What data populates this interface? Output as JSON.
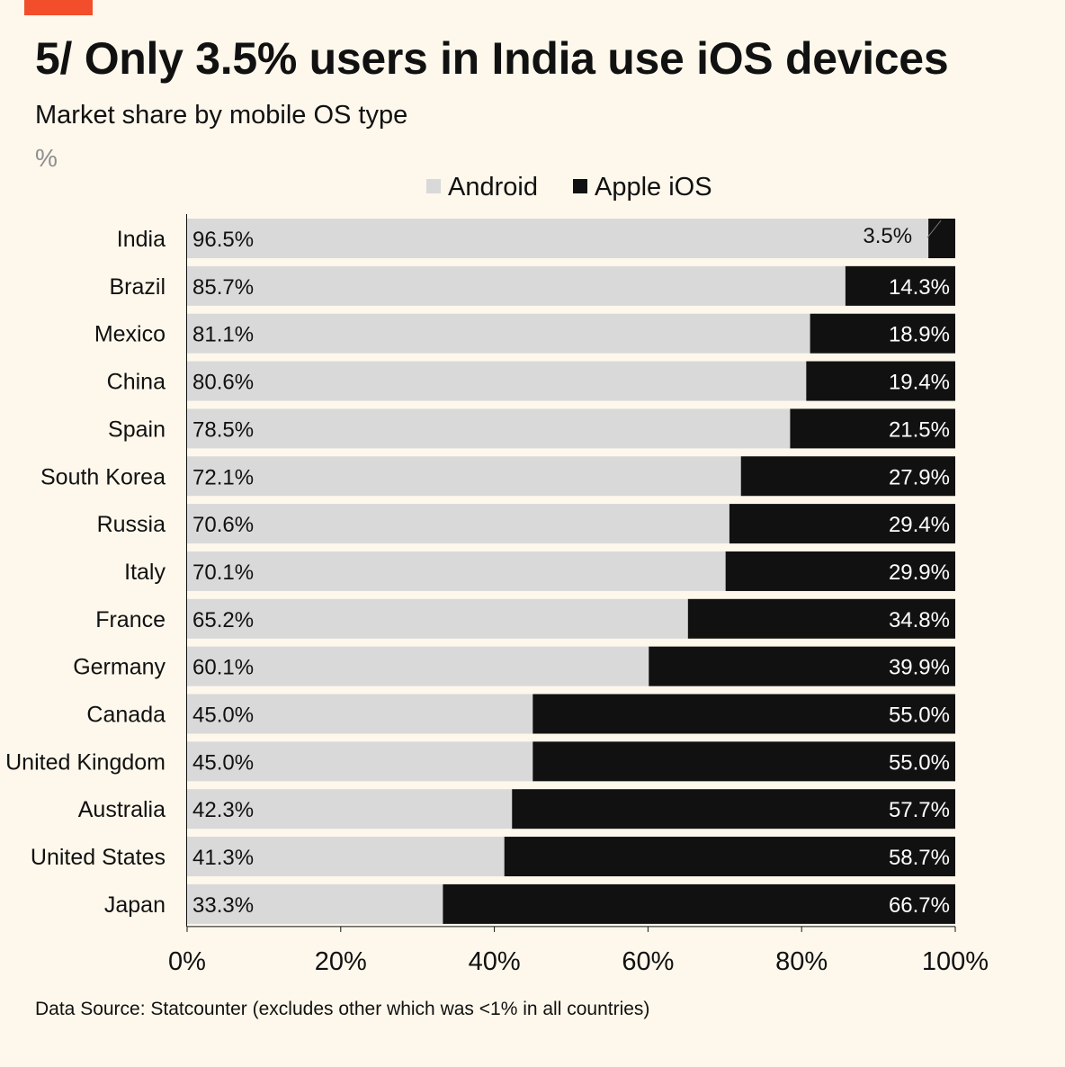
{
  "header": {
    "title": "5/ Only 3.5% users in India use iOS devices",
    "subtitle": "Market share by mobile OS type",
    "unit": "%"
  },
  "footer": {
    "source": "Data Source: Statcounter (excludes other which was <1% in all countries)"
  },
  "colors": {
    "accent": "#f24e2b",
    "android": "#d9d9d9",
    "ios": "#111111",
    "background": "#fef8ec"
  },
  "chart_data": {
    "type": "bar",
    "orientation": "horizontal",
    "stacked": true,
    "title": "5/ Only 3.5% users in India use iOS devices",
    "subtitle": "Market share by mobile OS type",
    "unit": "%",
    "categories": [
      "India",
      "Brazil",
      "Mexico",
      "China",
      "Spain",
      "South Korea",
      "Russia",
      "Italy",
      "France",
      "Germany",
      "Canada",
      "United Kingdom",
      "Australia",
      "United States",
      "Japan"
    ],
    "series": [
      {
        "name": "Android",
        "values": [
          96.5,
          85.7,
          81.1,
          80.6,
          78.5,
          72.1,
          70.6,
          70.1,
          65.2,
          60.1,
          45.0,
          45.0,
          42.3,
          41.3,
          33.3
        ]
      },
      {
        "name": "Apple iOS",
        "values": [
          3.5,
          14.3,
          18.9,
          19.4,
          21.5,
          27.9,
          29.4,
          29.9,
          34.8,
          39.9,
          55.0,
          55.0,
          57.7,
          58.7,
          66.7
        ]
      }
    ],
    "xlim": [
      0,
      100
    ],
    "xticks": [
      "0%",
      "20%",
      "40%",
      "60%",
      "80%",
      "100%"
    ],
    "legend": "top-center",
    "grid": false
  }
}
